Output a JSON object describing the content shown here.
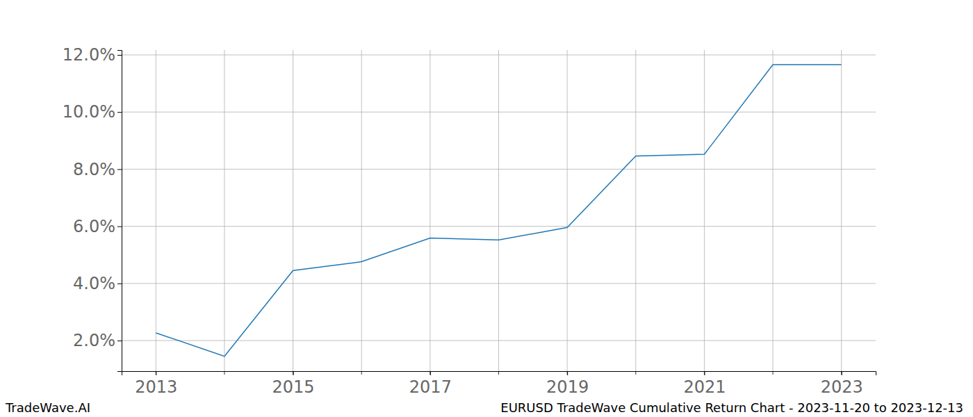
{
  "chart_data": {
    "type": "line",
    "title": "EURUSD TradeWave Cumulative Return Chart - 2023-11-20 to 2023-12-13",
    "annotations": [
      "TradeWave.AI"
    ],
    "x": [
      2013,
      2014,
      2015,
      2016,
      2017,
      2018,
      2019,
      2020,
      2021,
      2022,
      2023
    ],
    "series": [
      {
        "name": "EURUSD",
        "color": "#1f77b4",
        "values": [
          2.27,
          1.45,
          4.45,
          4.76,
          5.59,
          5.52,
          5.96,
          8.46,
          8.52,
          11.66,
          11.66
        ]
      }
    ],
    "xlim": [
      2012.5,
      2023.5
    ],
    "xticks": [
      2013,
      2015,
      2017,
      2019,
      2021,
      2023
    ],
    "ylim": [
      0.93,
      12.17
    ],
    "yticks": [
      {
        "value": 2,
        "label": "2.0%"
      },
      {
        "value": 4,
        "label": "4.0%"
      },
      {
        "value": 6,
        "label": "6.0%"
      },
      {
        "value": 8,
        "label": "8.0%"
      },
      {
        "value": 10,
        "label": "10.0%"
      },
      {
        "value": 12,
        "label": "12.0%"
      }
    ],
    "grid": true
  }
}
